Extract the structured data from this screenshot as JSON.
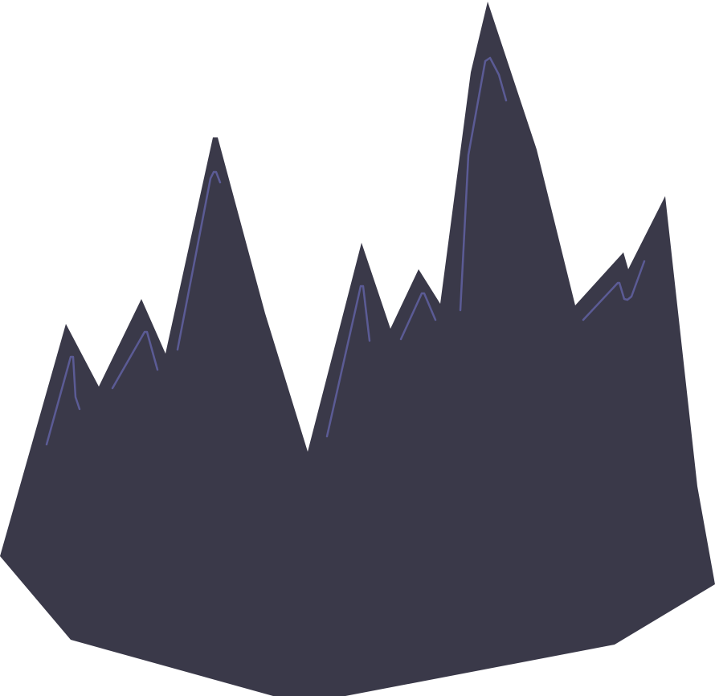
{
  "illustration": {
    "subject": "crystal-cluster",
    "colors": {
      "background": "#ffffff",
      "rock_body": "#3a3949",
      "highlight": "#5b5b95"
    }
  }
}
